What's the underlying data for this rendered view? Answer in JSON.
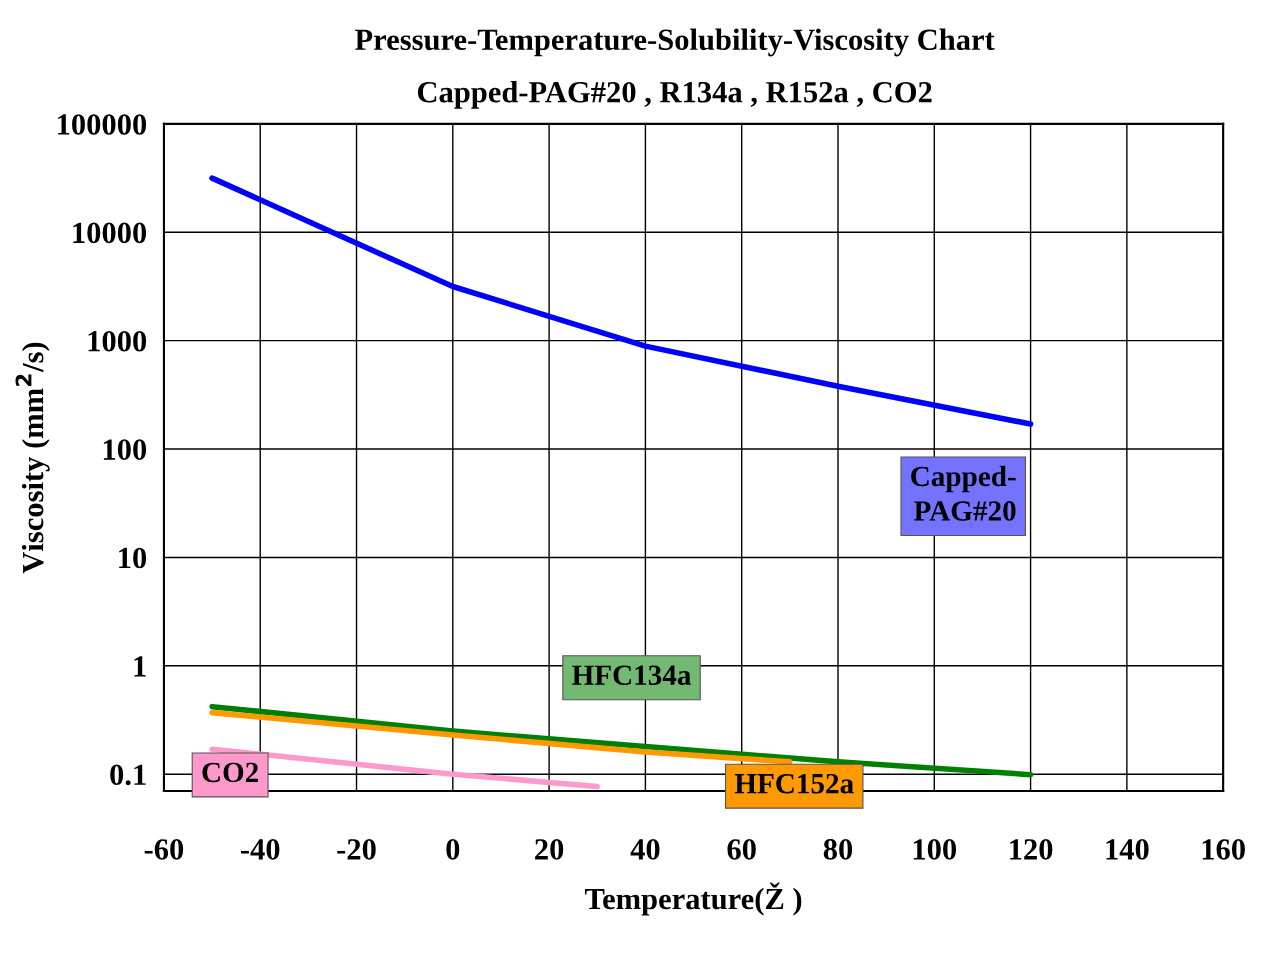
{
  "chart_data": {
    "type": "line",
    "title": "Pressure-Temperature-Solubility-Viscosity Chart",
    "subtitle": "Capped-PAG#20 , R134a , R152a , CO2",
    "xlabel": "Temperature(Ž )",
    "ylabel": "Viscosity (mm$^{2}$/s)",
    "series": [
      {
        "name": "Capped-\nPAG#20",
        "color": "#0000ff",
        "x": [
          -50,
          0,
          40,
          80,
          120
        ],
        "values": [
          31600,
          3160,
          890,
          380,
          170
        ]
      },
      {
        "name": "HFC134a",
        "color": "#008000",
        "x": [
          -50,
          0,
          40,
          80,
          120
        ],
        "values": [
          0.42,
          0.25,
          0.18,
          0.13,
          0.099
        ]
      },
      {
        "name": "HFC152a",
        "color": "#ff9900",
        "x": [
          -50,
          0,
          40,
          70
        ],
        "values": [
          0.37,
          0.23,
          0.16,
          0.13
        ]
      },
      {
        "name": "CO2",
        "color": "#ff99cc",
        "x": [
          -50,
          0,
          20,
          30
        ],
        "values": [
          0.17,
          0.1,
          0.084,
          0.077
        ]
      }
    ],
    "log": "y",
    "xlim": [
      -60,
      160
    ],
    "xticks": [
      -60,
      -40,
      -20,
      0,
      20,
      40,
      60,
      80,
      100,
      120,
      140,
      160
    ],
    "ylim": [
      0.07,
      100000
    ],
    "yticks": [
      0.1,
      1,
      10,
      100,
      1000,
      10000,
      100000
    ],
    "grid": true,
    "marker": "none",
    "line_style": "solid",
    "legend": false
  }
}
